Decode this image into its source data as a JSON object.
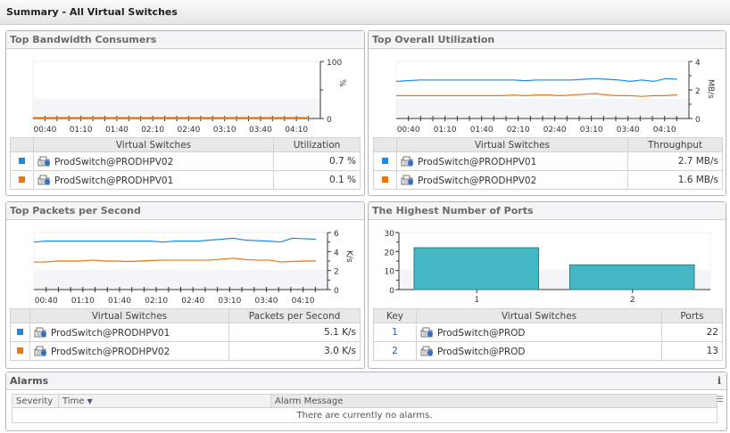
{
  "page_title": "Summary - All Virtual Switches",
  "colors": {
    "blue": "#1e88e5",
    "orange": "#e8770f",
    "bar": "#45b8c5"
  },
  "icons": {
    "virtual_switch": "virtual-switch-icon",
    "info": "info-icon",
    "column_menu": "column-menu-icon",
    "sort": "sort-desc-icon"
  },
  "bandwidth": {
    "title": "Top Bandwidth Consumers",
    "col_name": "Virtual Switches",
    "col_value": "Utilization",
    "rows": [
      {
        "name": "ProdSwitch@PRODHPV02",
        "value": "0.7 %",
        "color": "blue"
      },
      {
        "name": "ProdSwitch@PRODHPV01",
        "value": "0.1 %",
        "color": "orange"
      }
    ]
  },
  "utilization": {
    "title": "Top Overall Utilization",
    "col_name": "Virtual Switches",
    "col_value": "Throughput",
    "rows": [
      {
        "name": "ProdSwitch@PRODHPV01",
        "value": "2.7 MB/s",
        "color": "blue"
      },
      {
        "name": "ProdSwitch@PRODHPV02",
        "value": "1.6 MB/s",
        "color": "orange"
      }
    ]
  },
  "packets": {
    "title": "Top Packets per Second",
    "col_name": "Virtual Switches",
    "col_value": "Packets per Second",
    "rows": [
      {
        "name": "ProdSwitch@PRODHPV01",
        "value": "5.1 K/s",
        "color": "blue"
      },
      {
        "name": "ProdSwitch@PRODHPV02",
        "value": "3.0 K/s",
        "color": "orange"
      }
    ]
  },
  "ports": {
    "title": "The Highest Number of Ports",
    "col_key": "Key",
    "col_name": "Virtual Switches",
    "col_value": "Ports",
    "rows": [
      {
        "key": "1",
        "name": "ProdSwitch@PROD",
        "value": "22"
      },
      {
        "key": "2",
        "name": "ProdSwitch@PROD",
        "value": "13"
      }
    ]
  },
  "alarms": {
    "title": "Alarms",
    "columns": [
      "Severity",
      "Time",
      "Alarm Message"
    ],
    "empty": "There are currently no alarms."
  },
  "chart_data": [
    {
      "type": "line",
      "id": "bandwidth",
      "ylabel": "%",
      "ylim": [
        0,
        100
      ],
      "yticks": [
        "0",
        "100"
      ],
      "xlim": [
        "00:30",
        "04:30"
      ],
      "xticks": [
        "00:40",
        "01:10",
        "01:40",
        "02:10",
        "02:40",
        "03:10",
        "03:40",
        "04:10"
      ],
      "grid": true,
      "series": [
        {
          "color": "blue",
          "values": [
            0.7,
            0.7,
            0.7,
            0.7,
            0.7,
            0.7,
            0.7,
            0.7,
            0.7,
            0.7,
            0.7,
            0.7,
            0.7,
            0.7,
            0.7,
            0.7,
            0.7,
            0.7,
            0.7,
            0.7,
            0.7,
            0.7,
            0.7,
            0.7,
            0.7
          ]
        },
        {
          "color": "orange",
          "values": [
            0.1,
            0.1,
            0.1,
            0.1,
            0.1,
            0.1,
            0.1,
            0.1,
            0.1,
            0.1,
            0.1,
            0.1,
            0.1,
            0.1,
            0.1,
            0.1,
            0.1,
            0.1,
            0.1,
            0.1,
            0.1,
            0.1,
            0.1,
            0.1,
            0.1
          ]
        }
      ]
    },
    {
      "type": "line",
      "id": "utilization",
      "ylabel": "MB/s",
      "ylim": [
        0,
        4
      ],
      "yticks": [
        "0",
        "2",
        "4"
      ],
      "xlim": [
        "00:30",
        "04:30"
      ],
      "xticks": [
        "00:40",
        "01:10",
        "01:40",
        "02:10",
        "02:40",
        "03:10",
        "03:40",
        "04:10"
      ],
      "grid": true,
      "series": [
        {
          "color": "blue",
          "values": [
            2.6,
            2.65,
            2.7,
            2.7,
            2.7,
            2.7,
            2.7,
            2.7,
            2.7,
            2.7,
            2.7,
            2.65,
            2.7,
            2.7,
            2.7,
            2.7,
            2.75,
            2.8,
            2.75,
            2.7,
            2.6,
            2.7,
            2.6,
            2.8,
            2.75
          ]
        },
        {
          "color": "orange",
          "values": [
            1.6,
            1.6,
            1.6,
            1.6,
            1.6,
            1.6,
            1.6,
            1.6,
            1.6,
            1.6,
            1.65,
            1.6,
            1.65,
            1.65,
            1.6,
            1.65,
            1.7,
            1.75,
            1.65,
            1.6,
            1.6,
            1.55,
            1.6,
            1.6,
            1.65
          ]
        }
      ]
    },
    {
      "type": "line",
      "id": "packets",
      "ylabel": "K/s",
      "ylim": [
        0,
        6
      ],
      "yticks": [
        "0",
        "2",
        "4",
        "6"
      ],
      "xlim": [
        "00:30",
        "04:30"
      ],
      "xticks": [
        "00:40",
        "01:10",
        "01:40",
        "02:10",
        "02:40",
        "03:10",
        "03:40",
        "04:10"
      ],
      "grid": true,
      "series": [
        {
          "color": "blue",
          "values": [
            5.0,
            5.1,
            5.1,
            5.1,
            5.1,
            5.1,
            5.1,
            5.1,
            5.1,
            5.1,
            5.1,
            5.0,
            5.1,
            5.1,
            5.1,
            5.2,
            5.3,
            5.4,
            5.2,
            5.15,
            5.1,
            5.0,
            5.4,
            5.35,
            5.3
          ]
        },
        {
          "color": "orange",
          "values": [
            2.9,
            2.9,
            3.0,
            3.0,
            3.0,
            3.1,
            3.0,
            3.0,
            2.95,
            3.0,
            3.05,
            3.1,
            3.1,
            3.1,
            3.1,
            3.1,
            3.2,
            3.3,
            3.15,
            3.1,
            3.1,
            2.9,
            2.95,
            3.0,
            3.0
          ]
        }
      ]
    },
    {
      "type": "bar",
      "id": "ports",
      "categories": [
        "1",
        "2"
      ],
      "values": [
        22,
        13
      ],
      "ylim": [
        0,
        30
      ],
      "yticks": [
        "0",
        "10",
        "20",
        "30"
      ],
      "grid": true
    }
  ]
}
